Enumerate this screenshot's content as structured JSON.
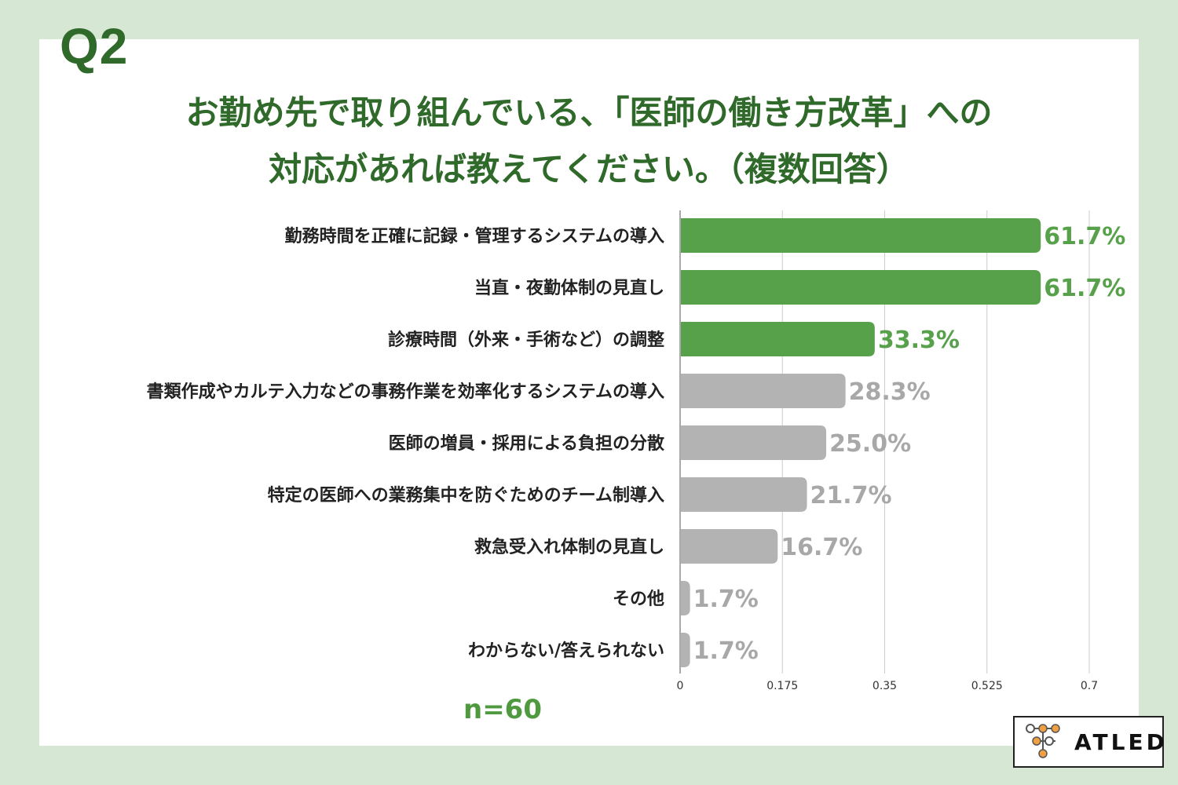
{
  "q_label": "Q2",
  "title_lines": [
    "お勤め先で取り組んでいる、「医師の働き方改革」への",
    "対応があれば教えてください。（複数回答）"
  ],
  "n_label": "n=60",
  "logo_text": "ATLED",
  "colors": {
    "highlight": "#57a14a",
    "other": "#b3b3b3",
    "title": "#2f6a2a",
    "background": "#d6e8d4"
  },
  "chart_data": {
    "type": "bar",
    "orientation": "horizontal",
    "categories": [
      "勤務時間を正確に記録・管理するシステムの導入",
      "当直・夜勤体制の見直し",
      "診療時間（外来・手術など）の調整",
      "書類作成やカルテ入力などの事務作業を効率化するシステムの導入",
      "医師の増員・採用による負担の分散",
      "特定の医師への業務集中を防ぐためのチーム制導入",
      "救急受入れ体制の見直し",
      "その他",
      "わからない/答えられない"
    ],
    "values": [
      0.617,
      0.617,
      0.333,
      0.283,
      0.25,
      0.217,
      0.167,
      0.017,
      0.017
    ],
    "value_labels": [
      "61.7%",
      "61.7%",
      "33.3%",
      "28.3%",
      "25.0%",
      "21.7%",
      "16.7%",
      "1.7%",
      "1.7%"
    ],
    "highlighted": [
      true,
      true,
      true,
      false,
      false,
      false,
      false,
      false,
      false
    ],
    "xlim": [
      0,
      0.7
    ],
    "xticks": [
      "0",
      "0.175",
      "0.35",
      "0.525",
      "0.7"
    ],
    "grid": true
  }
}
